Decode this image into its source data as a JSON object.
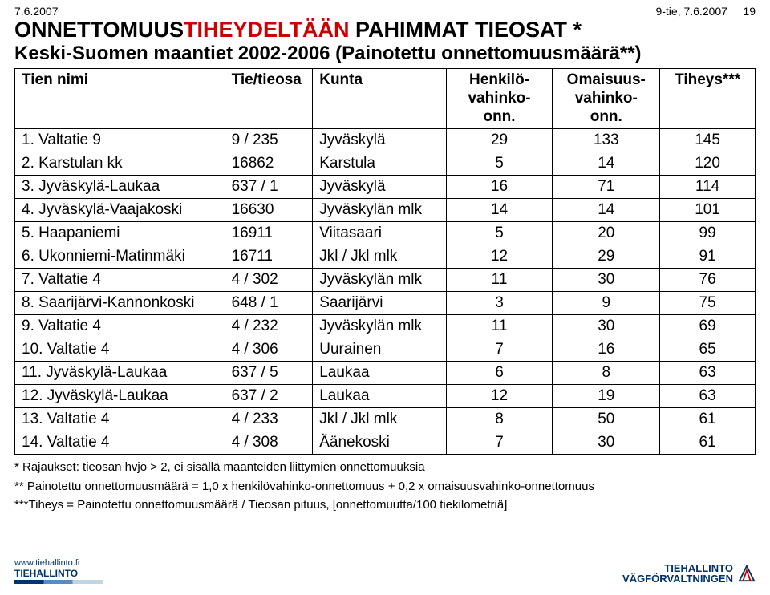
{
  "header": {
    "left_date": "7.6.2007",
    "right_meta": "9-tie, 7.6.2007",
    "page_num": "19",
    "title_pre": "ONNETTOMUUS",
    "title_highlight": "TIHEYDELTÄÄN",
    "title_post": " PAHIMMAT TIEOSAT *",
    "subtitle": "Keski-Suomen maantiet 2002-2006 (Painotettu onnettomuusmäärä**)"
  },
  "table": {
    "columns": {
      "c1": "Tien nimi",
      "c2": "Tie/tieosa",
      "c3": "Kunta",
      "c4": "Henkilö-\nvahinko-\nonn.",
      "c5": "Omaisuus-\nvahinko-\nonn.",
      "c6": "Tiheys***"
    },
    "rows": [
      {
        "name": "1. Valtatie 9",
        "tie": "9 / 235",
        "kunta": "Jyväskylä",
        "v1": "29",
        "v2": "133",
        "v3": "145"
      },
      {
        "name": "2. Karstulan kk",
        "tie": "16862",
        "kunta": "Karstula",
        "v1": "5",
        "v2": "14",
        "v3": "120"
      },
      {
        "name": "3. Jyväskylä-Laukaa",
        "tie": "637 / 1",
        "kunta": "Jyväskylä",
        "v1": "16",
        "v2": "71",
        "v3": "114"
      },
      {
        "name": "4. Jyväskylä-Vaajakoski",
        "tie": "16630",
        "kunta": "Jyväskylän mlk",
        "v1": "14",
        "v2": "14",
        "v3": "101"
      },
      {
        "name": "5. Haapaniemi",
        "tie": "16911",
        "kunta": "Viitasaari",
        "v1": "5",
        "v2": "20",
        "v3": "99"
      },
      {
        "name": "6. Ukonniemi-Matinmäki",
        "tie": "16711",
        "kunta": "Jkl / Jkl mlk",
        "v1": "12",
        "v2": "29",
        "v3": "91"
      },
      {
        "name": "7. Valtatie 4",
        "tie": "4 / 302",
        "kunta": "Jyväskylän mlk",
        "v1": "11",
        "v2": "30",
        "v3": "76"
      },
      {
        "name": "8. Saarijärvi-Kannonkoski",
        "tie": "648 / 1",
        "kunta": "Saarijärvi",
        "v1": "3",
        "v2": "9",
        "v3": "75"
      },
      {
        "name": "9. Valtatie 4",
        "tie": "4 / 232",
        "kunta": "Jyväskylän mlk",
        "v1": "11",
        "v2": "30",
        "v3": "69"
      },
      {
        "name": "10. Valtatie 4",
        "tie": "4 / 306",
        "kunta": "Uurainen",
        "v1": "7",
        "v2": "16",
        "v3": "65"
      },
      {
        "name": "11. Jyväskylä-Laukaa",
        "tie": "637 / 5",
        "kunta": "Laukaa",
        "v1": "6",
        "v2": "8",
        "v3": "63"
      },
      {
        "name": "12. Jyväskylä-Laukaa",
        "tie": "637 / 2",
        "kunta": "Laukaa",
        "v1": "12",
        "v2": "19",
        "v3": "63"
      },
      {
        "name": "13. Valtatie 4",
        "tie": "4 / 233",
        "kunta": "Jkl / Jkl mlk",
        "v1": "8",
        "v2": "50",
        "v3": "61"
      },
      {
        "name": "14. Valtatie 4",
        "tie": "4 / 308",
        "kunta": "Äänekoski",
        "v1": "7",
        "v2": "30",
        "v3": "61"
      }
    ]
  },
  "footnotes": {
    "f1": "*   Rajaukset: tieosan hvjo > 2, ei sisällä maanteiden liittymien onnettomuuksia",
    "f2": "**  Painotettu onnettomuusmäärä = 1,0 x henkilövahinko-onnettomuus + 0,2 x omaisuusvahinko-onnettomuus",
    "f3": "***Tiheys = Painotettu onnettomuusmäärä / Tieosan pituus, [onnettomuutta/100 tiekilometriä]"
  },
  "logos": {
    "left_url": "www.tiehallinto.fi",
    "left_brand": "TIEHALLINTO",
    "right_brand": "TIEHALLINTO\nVÄGFÖRVALTNINGEN"
  }
}
